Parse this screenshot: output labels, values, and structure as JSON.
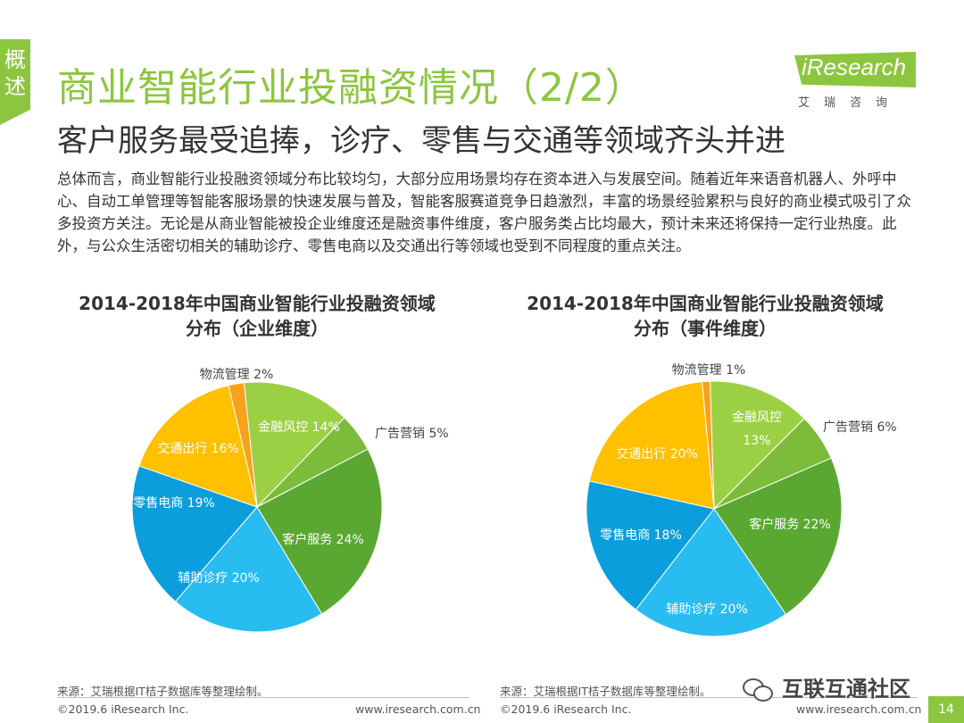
{
  "section_tab": "概述",
  "title": "商业智能行业投融资情况（2/2）",
  "subtitle": "客户服务最受追捧，诊疗、零售与交通等领域齐头并进",
  "logo": {
    "text": "iResearch",
    "cn": "艾瑞咨询"
  },
  "body_text": "总体而言，商业智能行业投融资领域分布比较均匀，大部分应用场景均存在资本进入与发展空间。随着近年来语音机器人、外呼中心、自动工单管理等智能客服场景的快速发展与普及，智能客服赛道竞争日趋激烈，丰富的场景经验累积与良好的商业模式吸引了众多投资方关注。无论是从商业智能被投企业维度还是融资事件维度，客户服务类占比均最大，预计未来还将保持一定行业热度。此外，与公众生活密切相关的辅助诊疗、零售电商以及交通出行等领域也受到不同程度的重点关注。",
  "colors": {
    "accent": "#8cc63f"
  },
  "chart_data": [
    {
      "type": "pie",
      "title_line1": "2014-2018年中国商业智能行业投融资领域",
      "title_line2": "分布（企业维度）",
      "slices": [
        {
          "name": "金融风控",
          "value": 14,
          "label": "金融风控 14%",
          "color": "#9bd045"
        },
        {
          "name": "广告营销",
          "value": 5,
          "label": "广告营销 5%",
          "color": "#7dbb3a"
        },
        {
          "name": "客户服务",
          "value": 24,
          "label": "客户服务 24%",
          "color": "#5aa832"
        },
        {
          "name": "辅助诊疗",
          "value": 20,
          "label": "辅助诊疗 20%",
          "color": "#29bcf0"
        },
        {
          "name": "零售电商",
          "value": 19,
          "label": "零售电商 19%",
          "color": "#0a9fdc"
        },
        {
          "name": "交通出行",
          "value": 16,
          "label": "交通出行 16%",
          "color": "#ffc000"
        },
        {
          "name": "物流管理",
          "value": 2,
          "label": "物流管理 2%",
          "color": "#f7a21b"
        }
      ]
    },
    {
      "type": "pie",
      "title_line1": "2014-2018年中国商业智能行业投融资领域",
      "title_line2": "分布（事件维度）",
      "slices": [
        {
          "name": "金融风控",
          "value": 13,
          "label_line1": "金融风控",
          "label_line2": "13%",
          "color": "#9bd045"
        },
        {
          "name": "广告营销",
          "value": 6,
          "label": "广告营销 6%",
          "color": "#7dbb3a"
        },
        {
          "name": "客户服务",
          "value": 22,
          "label": "客户服务 22%",
          "color": "#5aa832"
        },
        {
          "name": "辅助诊疗",
          "value": 20,
          "label": "辅助诊疗 20%",
          "color": "#29bcf0"
        },
        {
          "name": "零售电商",
          "value": 18,
          "label": "零售电商 18%",
          "color": "#0a9fdc"
        },
        {
          "name": "交通出行",
          "value": 20,
          "label": "交通出行 20%",
          "color": "#ffc000"
        },
        {
          "name": "物流管理",
          "value": 1,
          "label": "物流管理 1%",
          "color": "#f7a21b"
        }
      ]
    }
  ],
  "source_left": "来源：艾瑞根据IT桔子数据库等整理绘制。",
  "source_right": "来源：艾瑞根据IT桔子数据库等整理绘制。",
  "footer_left_copyright": "©2019.6 iResearch Inc.",
  "footer_left_url": "www.iresearch.com.cn",
  "footer_right_copyright": "©2019.6 iResearch Inc.",
  "footer_right_url": "www.iresearch.com.cn",
  "wechat_label": "互联互通社区",
  "page_number": "14"
}
